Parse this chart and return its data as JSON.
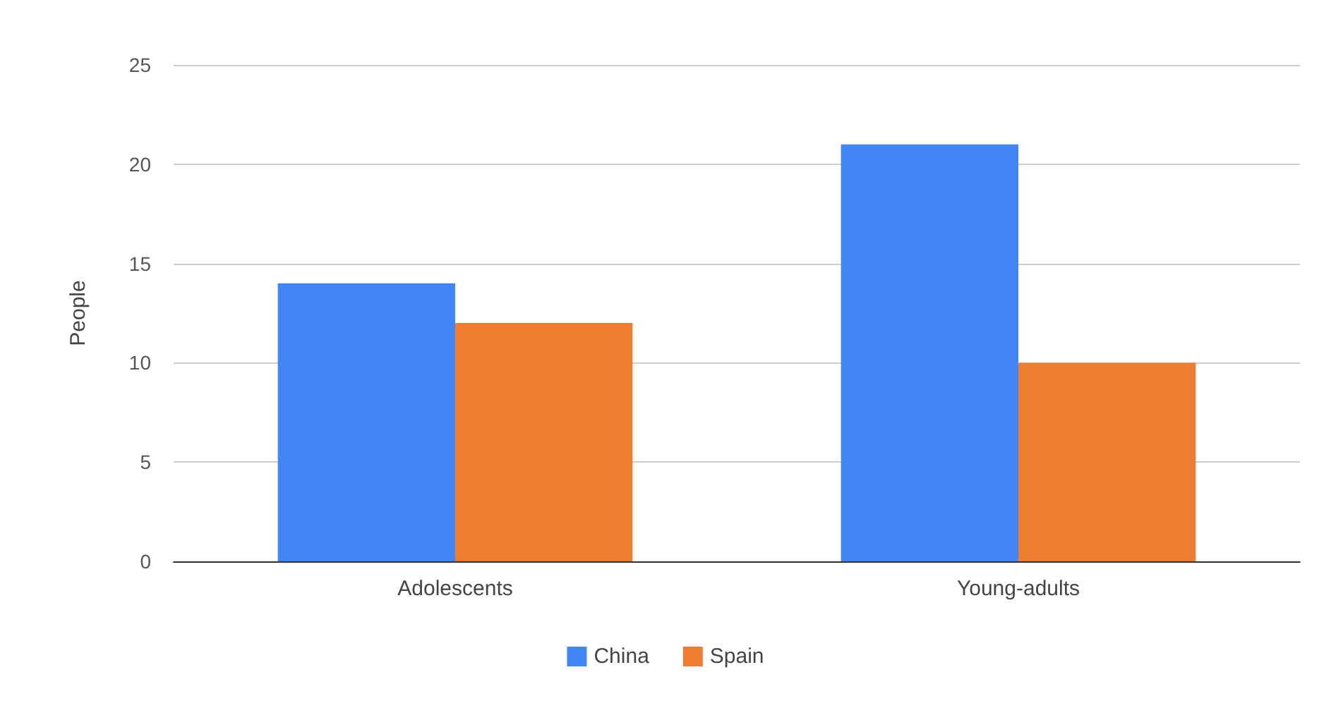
{
  "chart_data": {
    "type": "bar",
    "ylabel": "People",
    "categories": [
      "Adolescents",
      "Young-adults"
    ],
    "series": [
      {
        "name": "China",
        "color": "#4285f4",
        "values": [
          14,
          21
        ]
      },
      {
        "name": "Spain",
        "color": "#ed7d31",
        "values": [
          12,
          10
        ]
      }
    ],
    "ylim": [
      0,
      25
    ],
    "yticks": [
      0,
      5,
      10,
      15,
      20,
      25
    ],
    "grid": "y",
    "legend": "bottom"
  }
}
